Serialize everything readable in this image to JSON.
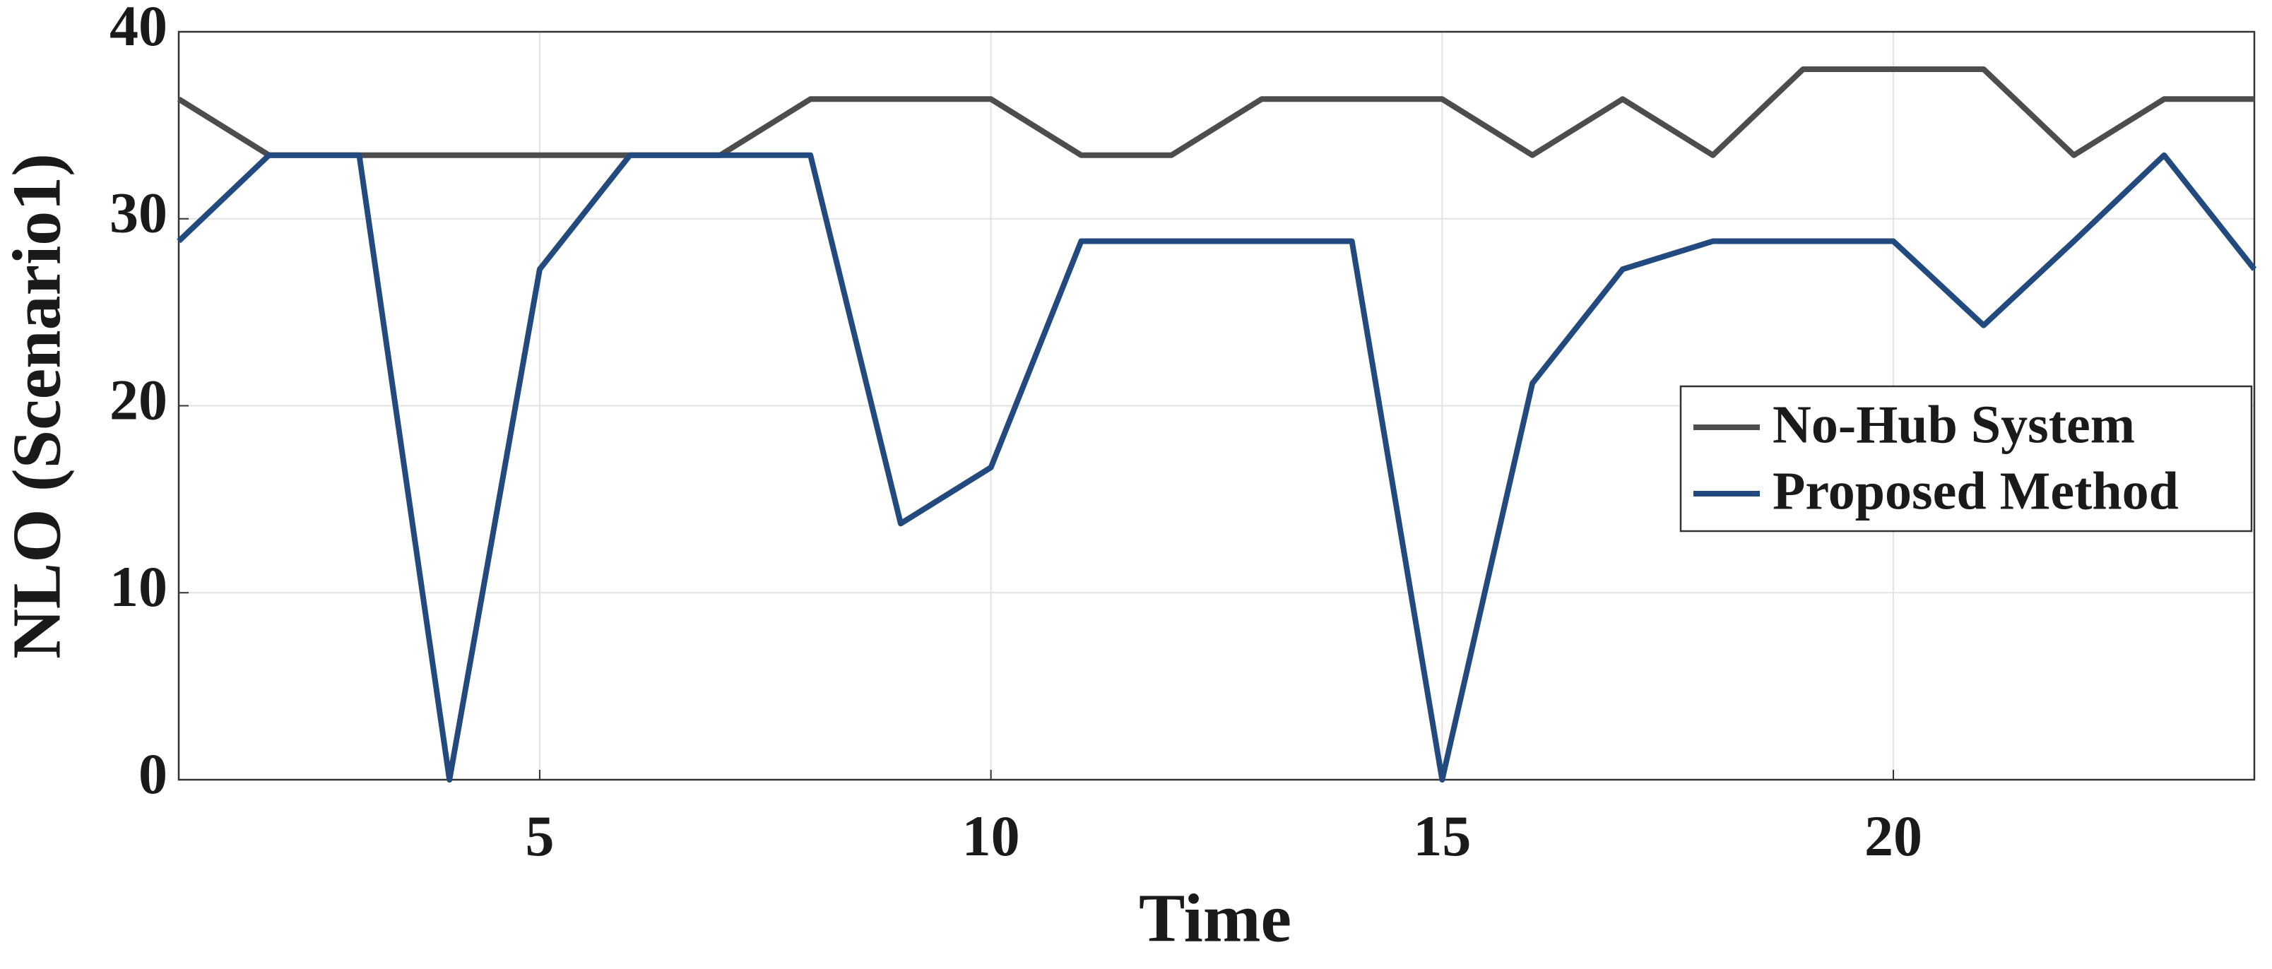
{
  "chart_data": {
    "type": "line",
    "xlabel": "Time",
    "ylabel": "NLO (Scenario1)",
    "x": [
      1,
      2,
      3,
      4,
      5,
      6,
      7,
      8,
      9,
      10,
      11,
      12,
      13,
      14,
      15,
      16,
      17,
      18,
      19,
      20,
      21,
      22,
      23,
      24
    ],
    "series": [
      {
        "name": "No-Hub System",
        "color": "#4d4d4d",
        "values": [
          36.4,
          33.4,
          33.4,
          33.4,
          33.4,
          33.4,
          33.4,
          36.4,
          36.4,
          36.4,
          33.4,
          33.4,
          36.4,
          36.4,
          36.4,
          33.4,
          36.4,
          33.4,
          38,
          38,
          38,
          33.4,
          36.4,
          36.4
        ]
      },
      {
        "name": "Proposed Method",
        "color": "#234a7e",
        "values": [
          28.8,
          33.4,
          33.4,
          0,
          27.3,
          33.4,
          33.4,
          33.4,
          13.7,
          16.7,
          28.8,
          28.8,
          28.8,
          28.8,
          0,
          21.2,
          27.3,
          28.8,
          28.8,
          28.8,
          24.3,
          28.8,
          33.4,
          27.3
        ]
      }
    ],
    "xlim": [
      1,
      24
    ],
    "xticks": [
      5,
      10,
      15,
      20
    ],
    "ylim": [
      0,
      40
    ],
    "yticks": [
      0,
      10,
      20,
      30,
      40
    ],
    "grid": true,
    "legend": "right"
  }
}
